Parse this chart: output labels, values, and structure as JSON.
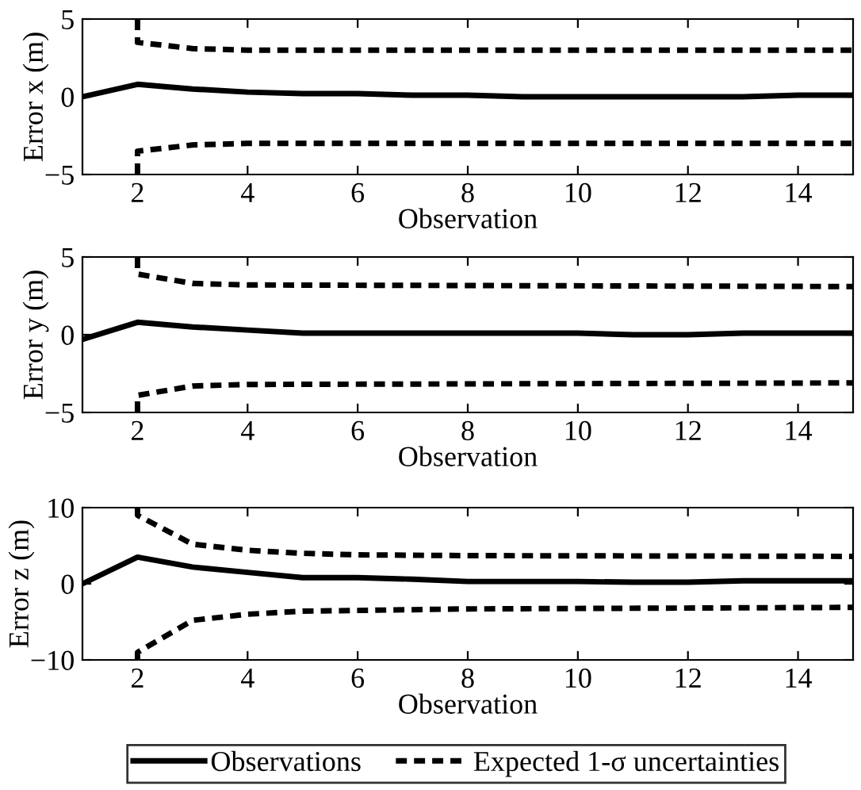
{
  "chart_data": [
    {
      "type": "line",
      "xlabel": "Observation",
      "ylabel": "Error x (m)",
      "xlim": [
        1,
        15
      ],
      "xticks": [
        2,
        4,
        6,
        8,
        10,
        12,
        14
      ],
      "ylim": [
        -5,
        5
      ],
      "yticks": [
        -5,
        0,
        5
      ],
      "series": [
        {
          "color": "#000000",
          "line_style": "solid",
          "x": [
            1,
            2,
            3,
            4,
            5,
            6,
            7,
            8,
            9,
            10,
            11,
            12,
            13,
            14,
            15
          ],
          "values": [
            0,
            0.8,
            0.5,
            0.3,
            0.2,
            0.2,
            0.1,
            0.1,
            0,
            0,
            0,
            0,
            0,
            0.1,
            0.1
          ]
        },
        {
          "color": "#000000",
          "line_style": "dashed",
          "x": [
            2,
            2,
            3,
            4,
            15
          ],
          "values": [
            5,
            3.5,
            3.1,
            3.0,
            3.0
          ]
        },
        {
          "color": "#000000",
          "line_style": "dashed",
          "x": [
            2,
            2,
            3,
            4,
            15
          ],
          "values": [
            -5,
            -3.5,
            -3.1,
            -3.0,
            -3.0
          ]
        }
      ]
    },
    {
      "type": "line",
      "xlabel": "Observation",
      "ylabel": "Error y (m)",
      "xlim": [
        1,
        15
      ],
      "xticks": [
        2,
        4,
        6,
        8,
        10,
        12,
        14
      ],
      "ylim": [
        -5,
        5
      ],
      "yticks": [
        -5,
        0,
        5
      ],
      "series": [
        {
          "color": "#000000",
          "line_style": "solid",
          "x": [
            1,
            2,
            3,
            4,
            5,
            6,
            7,
            8,
            9,
            10,
            11,
            12,
            13,
            14,
            15
          ],
          "values": [
            -0.3,
            0.8,
            0.5,
            0.3,
            0.1,
            0.1,
            0.1,
            0.1,
            0.1,
            0.1,
            0,
            0,
            0.1,
            0.1,
            0.1
          ]
        },
        {
          "color": "#000000",
          "line_style": "dashed",
          "x": [
            2,
            2,
            3,
            4,
            15
          ],
          "values": [
            5,
            3.9,
            3.3,
            3.2,
            3.1
          ]
        },
        {
          "color": "#000000",
          "line_style": "dashed",
          "x": [
            2,
            2,
            3,
            4,
            15
          ],
          "values": [
            -5,
            -3.9,
            -3.3,
            -3.2,
            -3.1
          ]
        }
      ]
    },
    {
      "type": "line",
      "xlabel": "Observation",
      "ylabel": "Error z (m)",
      "xlim": [
        1,
        15
      ],
      "xticks": [
        2,
        4,
        6,
        8,
        10,
        12,
        14
      ],
      "ylim": [
        -10,
        10
      ],
      "yticks": [
        -10,
        0,
        10
      ],
      "legend": "bottom",
      "series": [
        {
          "name": "Observations",
          "color": "#000000",
          "line_style": "solid",
          "x": [
            1,
            2,
            3,
            4,
            5,
            6,
            7,
            8,
            9,
            10,
            11,
            12,
            13,
            14,
            15
          ],
          "values": [
            0,
            3.5,
            2.2,
            1.5,
            0.8,
            0.8,
            0.6,
            0.3,
            0.3,
            0.3,
            0.2,
            0.2,
            0.4,
            0.4,
            0.4
          ]
        },
        {
          "name": "Expected 1-σ uncertainties",
          "color": "#000000",
          "line_style": "dashed",
          "x": [
            2,
            2,
            3,
            4,
            5,
            6,
            8,
            15
          ],
          "values": [
            10,
            9,
            5.2,
            4.4,
            4,
            3.8,
            3.7,
            3.6
          ]
        },
        {
          "color": "#000000",
          "line_style": "dashed",
          "x": [
            2,
            2,
            3,
            4,
            5,
            6,
            8,
            15
          ],
          "values": [
            -10,
            -9,
            -4.8,
            -4,
            -3.6,
            -3.5,
            -3.3,
            -3.1
          ]
        }
      ]
    }
  ]
}
